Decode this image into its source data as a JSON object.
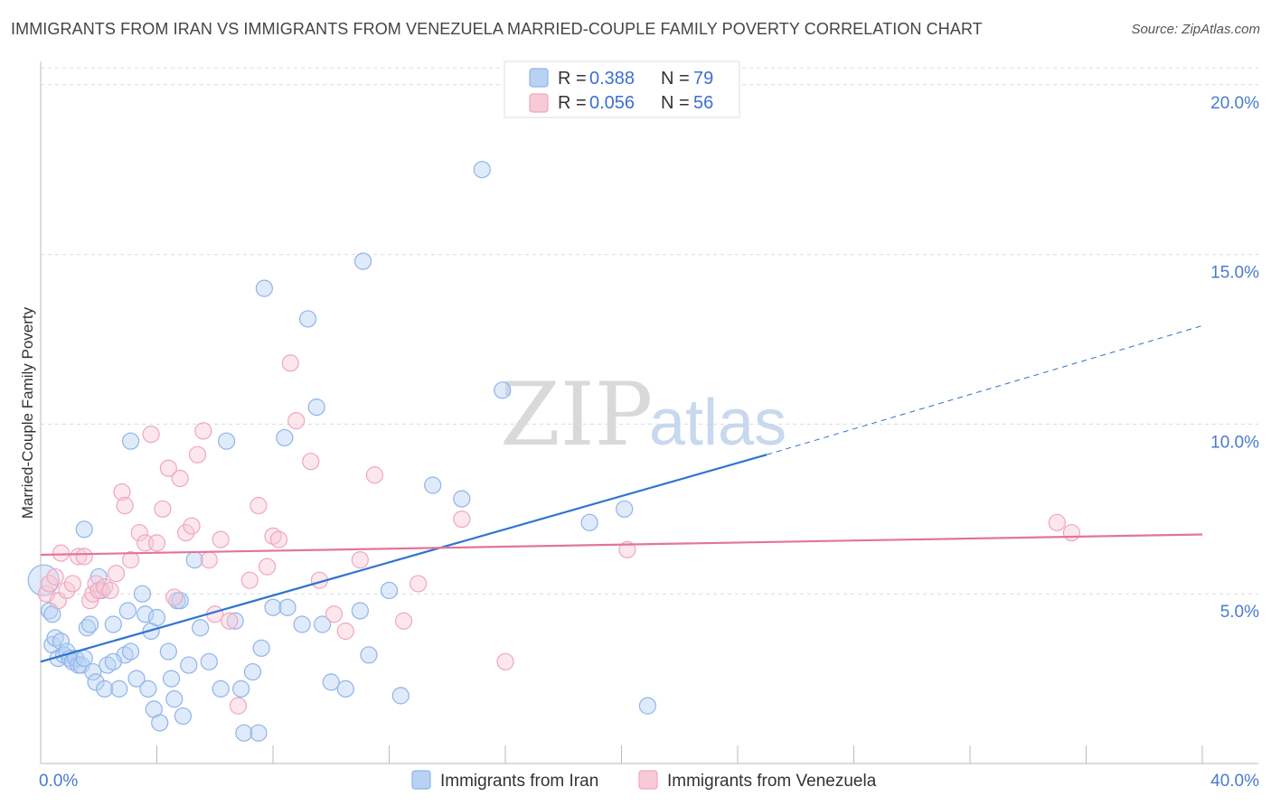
{
  "title": "IMMIGRANTS FROM IRAN VS IMMIGRANTS FROM VENEZUELA MARRIED-COUPLE FAMILY POVERTY CORRELATION CHART",
  "source": "Source: ZipAtlas.com",
  "watermark": {
    "zip": "ZIP",
    "atlas": "atlas"
  },
  "chart_data": {
    "type": "scatter",
    "title": "IMMIGRANTS FROM IRAN VS IMMIGRANTS FROM VENEZUELA MARRIED-COUPLE FAMILY POVERTY CORRELATION CHART",
    "xlabel": "",
    "ylabel": "Married-Couple Family Poverty",
    "xlim": [
      0,
      40
    ],
    "ylim": [
      0,
      20.5
    ],
    "x_tick_labels": {
      "min": "0.0%",
      "max": "40.0%"
    },
    "y_ticks": [
      {
        "value": 5,
        "label": "5.0%"
      },
      {
        "value": 10,
        "label": "10.0%"
      },
      {
        "value": 15,
        "label": "15.0%"
      },
      {
        "value": 20,
        "label": "20.0%"
      }
    ],
    "legend": [
      {
        "series": "Immigrants from Iran",
        "r_label": "R =",
        "r_value": "0.388",
        "n_label": "N =",
        "n_value": "79",
        "color": "#8fb4ea",
        "fill": "#b9d2f3"
      },
      {
        "series": "Immigrants from Venezuela",
        "r_label": "R =",
        "r_value": "0.056",
        "n_label": "N =",
        "n_value": "56",
        "color": "#f1a6bd",
        "fill": "#f8cad8"
      }
    ],
    "series": [
      {
        "name": "Immigrants from Iran",
        "color": "#8fb4ea",
        "trend": {
          "x0": 0,
          "y0": 3.0,
          "x1": 25,
          "y1": 9.1,
          "dash_to_x": 40,
          "dash_to_y": 12.9,
          "color": "#2f74d0"
        },
        "points": [
          [
            0.1,
            5.4
          ],
          [
            0.3,
            4.5
          ],
          [
            0.4,
            3.5
          ],
          [
            0.5,
            3.7
          ],
          [
            0.6,
            3.1
          ],
          [
            0.7,
            3.6
          ],
          [
            0.8,
            3.2
          ],
          [
            0.9,
            3.3
          ],
          [
            1.0,
            3.1
          ],
          [
            1.1,
            3.0
          ],
          [
            1.2,
            3.1
          ],
          [
            1.3,
            2.9
          ],
          [
            1.4,
            2.9
          ],
          [
            1.5,
            3.1
          ],
          [
            1.6,
            4.0
          ],
          [
            1.7,
            4.1
          ],
          [
            1.8,
            2.7
          ],
          [
            1.9,
            2.4
          ],
          [
            2.0,
            5.5
          ],
          [
            2.1,
            5.1
          ],
          [
            2.2,
            2.2
          ],
          [
            2.3,
            2.9
          ],
          [
            2.5,
            4.1
          ],
          [
            2.7,
            2.2
          ],
          [
            2.9,
            3.2
          ],
          [
            3.0,
            4.5
          ],
          [
            3.1,
            3.3
          ],
          [
            3.3,
            2.5
          ],
          [
            3.5,
            5.0
          ],
          [
            3.6,
            4.4
          ],
          [
            3.7,
            2.2
          ],
          [
            3.8,
            3.9
          ],
          [
            3.9,
            1.6
          ],
          [
            4.0,
            4.3
          ],
          [
            4.1,
            1.2
          ],
          [
            4.4,
            3.3
          ],
          [
            4.5,
            2.5
          ],
          [
            4.6,
            1.9
          ],
          [
            4.7,
            4.8
          ],
          [
            4.8,
            4.8
          ],
          [
            4.9,
            1.4
          ],
          [
            5.1,
            2.9
          ],
          [
            5.3,
            6.0
          ],
          [
            5.5,
            4.0
          ],
          [
            6.2,
            2.2
          ],
          [
            6.7,
            4.2
          ],
          [
            6.9,
            2.2
          ],
          [
            7.0,
            0.9
          ],
          [
            7.5,
            0.9
          ],
          [
            7.6,
            3.4
          ],
          [
            8.0,
            4.6
          ],
          [
            8.5,
            4.6
          ],
          [
            9.0,
            4.1
          ],
          [
            9.7,
            4.1
          ],
          [
            10.0,
            2.4
          ],
          [
            10.5,
            2.2
          ],
          [
            11.0,
            4.5
          ],
          [
            11.3,
            3.2
          ],
          [
            12.0,
            5.1
          ],
          [
            12.4,
            2.0
          ],
          [
            13.5,
            8.2
          ],
          [
            14.5,
            7.8
          ],
          [
            15.2,
            17.5
          ],
          [
            15.9,
            11.0
          ],
          [
            18.9,
            7.1
          ],
          [
            20.1,
            7.5
          ],
          [
            20.9,
            1.7
          ],
          [
            6.4,
            9.5
          ],
          [
            7.7,
            14.0
          ],
          [
            9.2,
            13.1
          ],
          [
            9.5,
            10.5
          ],
          [
            11.1,
            14.8
          ],
          [
            8.4,
            9.6
          ],
          [
            3.1,
            9.5
          ],
          [
            1.5,
            6.9
          ],
          [
            0.4,
            4.4
          ],
          [
            2.5,
            3.0
          ],
          [
            5.8,
            3.0
          ],
          [
            7.3,
            2.7
          ]
        ]
      },
      {
        "name": "Immigrants from Venezuela",
        "color": "#f1a6bd",
        "trend": {
          "x0": 0,
          "y0": 6.15,
          "x1": 40,
          "y1": 6.75,
          "color": "#e2759b"
        },
        "points": [
          [
            0.2,
            5.0
          ],
          [
            0.3,
            5.3
          ],
          [
            0.5,
            5.5
          ],
          [
            0.6,
            4.8
          ],
          [
            0.7,
            6.2
          ],
          [
            0.9,
            5.1
          ],
          [
            1.1,
            5.3
          ],
          [
            1.3,
            6.1
          ],
          [
            1.5,
            6.1
          ],
          [
            1.7,
            4.8
          ],
          [
            1.8,
            5.0
          ],
          [
            1.9,
            5.3
          ],
          [
            2.0,
            5.1
          ],
          [
            2.2,
            5.2
          ],
          [
            2.4,
            5.1
          ],
          [
            2.6,
            5.6
          ],
          [
            2.8,
            8.0
          ],
          [
            2.9,
            7.6
          ],
          [
            3.1,
            6.0
          ],
          [
            3.4,
            6.8
          ],
          [
            3.6,
            6.5
          ],
          [
            3.8,
            9.7
          ],
          [
            4.0,
            6.5
          ],
          [
            4.2,
            7.5
          ],
          [
            4.4,
            8.7
          ],
          [
            4.6,
            4.9
          ],
          [
            4.8,
            8.4
          ],
          [
            5.0,
            6.8
          ],
          [
            5.2,
            7.0
          ],
          [
            5.4,
            9.1
          ],
          [
            5.6,
            9.8
          ],
          [
            5.8,
            6.0
          ],
          [
            6.0,
            4.4
          ],
          [
            6.2,
            6.6
          ],
          [
            6.5,
            4.2
          ],
          [
            6.8,
            1.7
          ],
          [
            7.2,
            5.4
          ],
          [
            7.5,
            7.6
          ],
          [
            7.8,
            5.8
          ],
          [
            8.0,
            6.7
          ],
          [
            8.2,
            6.6
          ],
          [
            8.6,
            11.8
          ],
          [
            8.8,
            10.1
          ],
          [
            9.3,
            8.9
          ],
          [
            9.6,
            5.4
          ],
          [
            10.1,
            4.4
          ],
          [
            10.5,
            3.9
          ],
          [
            11.0,
            6.0
          ],
          [
            11.5,
            8.5
          ],
          [
            12.5,
            4.2
          ],
          [
            13.0,
            5.3
          ],
          [
            14.5,
            7.2
          ],
          [
            16.0,
            3.0
          ],
          [
            20.2,
            6.3
          ],
          [
            35.0,
            7.1
          ],
          [
            35.5,
            6.8
          ]
        ]
      }
    ]
  }
}
